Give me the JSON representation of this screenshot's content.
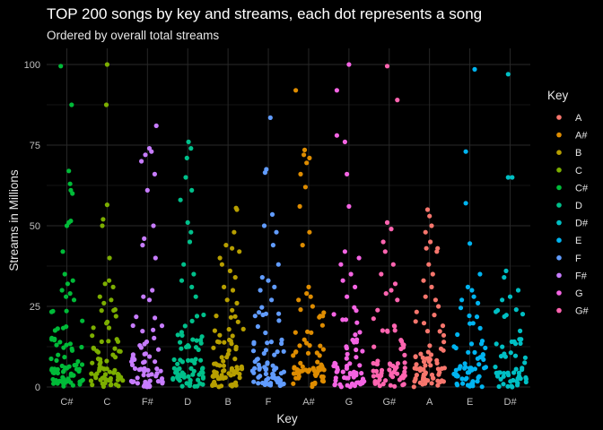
{
  "chart_data": {
    "type": "scatter",
    "title": "TOP 200 songs by key and streams, each dot represents a song",
    "subtitle": "Ordered by overall total streams",
    "xlabel": "Key",
    "ylabel": "Streams in Millions",
    "ylim": [
      0,
      105
    ],
    "yticks": [
      0,
      25,
      50,
      75,
      100
    ],
    "grid": true,
    "legend_title": "Key",
    "legend_placement": "right",
    "categories": [
      "C#",
      "C",
      "F#",
      "D",
      "B",
      "F",
      "A#",
      "G",
      "G#",
      "A",
      "E",
      "D#"
    ],
    "legend_keys": [
      "A",
      "A#",
      "B",
      "C",
      "C#",
      "D",
      "D#",
      "E",
      "F",
      "F#",
      "G",
      "G#"
    ],
    "colors": {
      "A": "#F8766D",
      "A#": "#DE8C00",
      "B": "#B79F00",
      "C": "#7CAE00",
      "C#": "#00BA38",
      "D": "#00C08B",
      "D#": "#00BFC4",
      "E": "#00B4F0",
      "F": "#619CFF",
      "F#": "#C77CFF",
      "G": "#F564E3",
      "G#": "#FF64B0"
    },
    "series": [
      {
        "key": "C#",
        "high": [
          [
            -0.15,
            99.5
          ],
          [
            0.12,
            87.5
          ],
          [
            0.05,
            67
          ],
          [
            0.08,
            63
          ],
          [
            0.1,
            61
          ],
          [
            0.14,
            60
          ],
          [
            0.0,
            50
          ],
          [
            0.05,
            51
          ],
          [
            0.1,
            51.5
          ],
          [
            -0.1,
            42
          ],
          [
            -0.05,
            35
          ],
          [
            0.02,
            32
          ],
          [
            0.15,
            33
          ],
          [
            -0.12,
            30
          ],
          [
            0.08,
            29
          ],
          [
            -0.02,
            28
          ],
          [
            0.18,
            27
          ]
        ],
        "counts": [
          40,
          22,
          9
        ]
      },
      {
        "key": "C",
        "high": [
          [
            0.0,
            100
          ],
          [
            -0.02,
            87.5
          ],
          [
            0.0,
            56.5
          ],
          [
            -0.1,
            52
          ],
          [
            -0.12,
            50
          ],
          [
            0.06,
            40
          ],
          [
            0.05,
            33
          ],
          [
            -0.05,
            32
          ],
          [
            0.15,
            31
          ],
          [
            -0.18,
            28
          ],
          [
            0.1,
            27
          ],
          [
            0.2,
            24
          ],
          [
            -0.08,
            26
          ]
        ],
        "counts": [
          38,
          20,
          8
        ]
      },
      {
        "key": "F#",
        "high": [
          [
            0.22,
            81
          ],
          [
            0.05,
            74
          ],
          [
            0.1,
            73
          ],
          [
            -0.05,
            72
          ],
          [
            -0.15,
            70
          ],
          [
            0.18,
            66
          ],
          [
            0.0,
            61
          ],
          [
            0.15,
            50
          ],
          [
            -0.08,
            46
          ],
          [
            -0.12,
            44
          ],
          [
            0.2,
            40
          ],
          [
            0.12,
            30
          ],
          [
            -0.1,
            28
          ],
          [
            0.05,
            27
          ]
        ],
        "counts": [
          32,
          18,
          7
        ]
      },
      {
        "key": "D",
        "high": [
          [
            0.02,
            76
          ],
          [
            0.08,
            74
          ],
          [
            -0.02,
            71
          ],
          [
            -0.05,
            65
          ],
          [
            0.1,
            61
          ],
          [
            -0.18,
            58
          ],
          [
            0.0,
            51
          ],
          [
            0.08,
            48
          ],
          [
            0.05,
            45
          ],
          [
            -0.1,
            38
          ],
          [
            0.15,
            35
          ],
          [
            -0.15,
            33
          ],
          [
            0.1,
            31
          ],
          [
            0.2,
            28
          ]
        ],
        "counts": [
          35,
          20,
          8
        ]
      },
      {
        "key": "B",
        "high": [
          [
            0.2,
            55.5
          ],
          [
            0.22,
            55
          ],
          [
            0.15,
            48
          ],
          [
            -0.05,
            44
          ],
          [
            0.1,
            43
          ],
          [
            0.28,
            42
          ],
          [
            -0.2,
            40
          ],
          [
            -0.15,
            38
          ],
          [
            0.05,
            36
          ],
          [
            0.18,
            34
          ],
          [
            -0.1,
            31
          ],
          [
            0.12,
            30
          ],
          [
            -0.02,
            27
          ],
          [
            0.22,
            26
          ]
        ],
        "counts": [
          40,
          22,
          10
        ]
      },
      {
        "key": "F",
        "high": [
          [
            0.05,
            83.5
          ],
          [
            -0.05,
            67.5
          ],
          [
            -0.08,
            66.5
          ],
          [
            0.1,
            53.5
          ],
          [
            -0.1,
            50
          ],
          [
            0.2,
            48
          ],
          [
            0.12,
            44
          ],
          [
            0.25,
            38
          ],
          [
            -0.15,
            34
          ],
          [
            0.0,
            33
          ],
          [
            0.15,
            31
          ],
          [
            -0.2,
            30
          ],
          [
            0.08,
            27
          ]
        ],
        "counts": [
          40,
          20,
          9
        ]
      },
      {
        "key": "A#",
        "high": [
          [
            -0.32,
            92
          ],
          [
            -0.1,
            73.5
          ],
          [
            -0.12,
            72
          ],
          [
            0.02,
            71
          ],
          [
            -0.05,
            69.5
          ],
          [
            -0.2,
            66
          ],
          [
            -0.08,
            62
          ],
          [
            -0.22,
            56
          ],
          [
            0.02,
            48
          ],
          [
            -0.15,
            44
          ],
          [
            0.0,
            31
          ],
          [
            -0.05,
            29
          ],
          [
            0.05,
            28
          ],
          [
            -0.25,
            27
          ],
          [
            0.1,
            25
          ],
          [
            -0.2,
            24
          ],
          [
            0.35,
            22
          ]
        ],
        "counts": [
          35,
          18,
          7
        ]
      },
      {
        "key": "G",
        "high": [
          [
            0.0,
            100
          ],
          [
            -0.3,
            92
          ],
          [
            -0.3,
            78
          ],
          [
            -0.1,
            76
          ],
          [
            -0.05,
            66
          ],
          [
            0.0,
            56
          ],
          [
            -0.1,
            42
          ],
          [
            0.25,
            40
          ],
          [
            -0.2,
            38
          ],
          [
            0.05,
            35
          ],
          [
            -0.15,
            33
          ],
          [
            0.15,
            31
          ],
          [
            -0.05,
            28
          ]
        ],
        "counts": [
          35,
          18,
          8
        ]
      },
      {
        "key": "G#",
        "high": [
          [
            -0.05,
            99.5
          ],
          [
            0.2,
            89
          ],
          [
            -0.05,
            51
          ],
          [
            0.05,
            49
          ],
          [
            -0.15,
            45
          ],
          [
            -0.1,
            42
          ],
          [
            0.1,
            38
          ],
          [
            -0.2,
            35
          ],
          [
            0.15,
            32
          ],
          [
            0.05,
            30
          ],
          [
            -0.08,
            29
          ],
          [
            0.2,
            27
          ]
        ],
        "counts": [
          35,
          18,
          8
        ]
      },
      {
        "key": "A",
        "high": [
          [
            -0.05,
            55
          ],
          [
            0.0,
            53
          ],
          [
            0.05,
            50
          ],
          [
            -0.1,
            48
          ],
          [
            0.02,
            45
          ],
          [
            -0.08,
            43
          ],
          [
            0.2,
            43
          ],
          [
            0.18,
            42
          ],
          [
            -0.02,
            38
          ],
          [
            0.08,
            35
          ],
          [
            -0.15,
            33
          ],
          [
            0.05,
            31
          ],
          [
            -0.1,
            28
          ],
          [
            0.15,
            27
          ],
          [
            0.22,
            25
          ]
        ],
        "counts": [
          38,
          20,
          8
        ]
      },
      {
        "key": "E",
        "high": [
          [
            0.12,
            98.5
          ],
          [
            -0.1,
            73
          ],
          [
            -0.1,
            57
          ],
          [
            0.0,
            44.5
          ],
          [
            0.25,
            35
          ],
          [
            -0.05,
            31
          ],
          [
            0.05,
            30
          ],
          [
            0.1,
            28
          ],
          [
            -0.2,
            27
          ],
          [
            0.2,
            26
          ]
        ],
        "counts": [
          32,
          18,
          7
        ]
      },
      {
        "key": "D#",
        "high": [
          [
            -0.05,
            97
          ],
          [
            -0.05,
            65
          ],
          [
            0.05,
            65
          ],
          [
            -0.1,
            36
          ],
          [
            -0.15,
            34
          ],
          [
            0.2,
            30
          ],
          [
            0.0,
            28
          ],
          [
            -0.2,
            27
          ],
          [
            0.15,
            24
          ]
        ],
        "counts": [
          30,
          16,
          6
        ]
      }
    ]
  }
}
